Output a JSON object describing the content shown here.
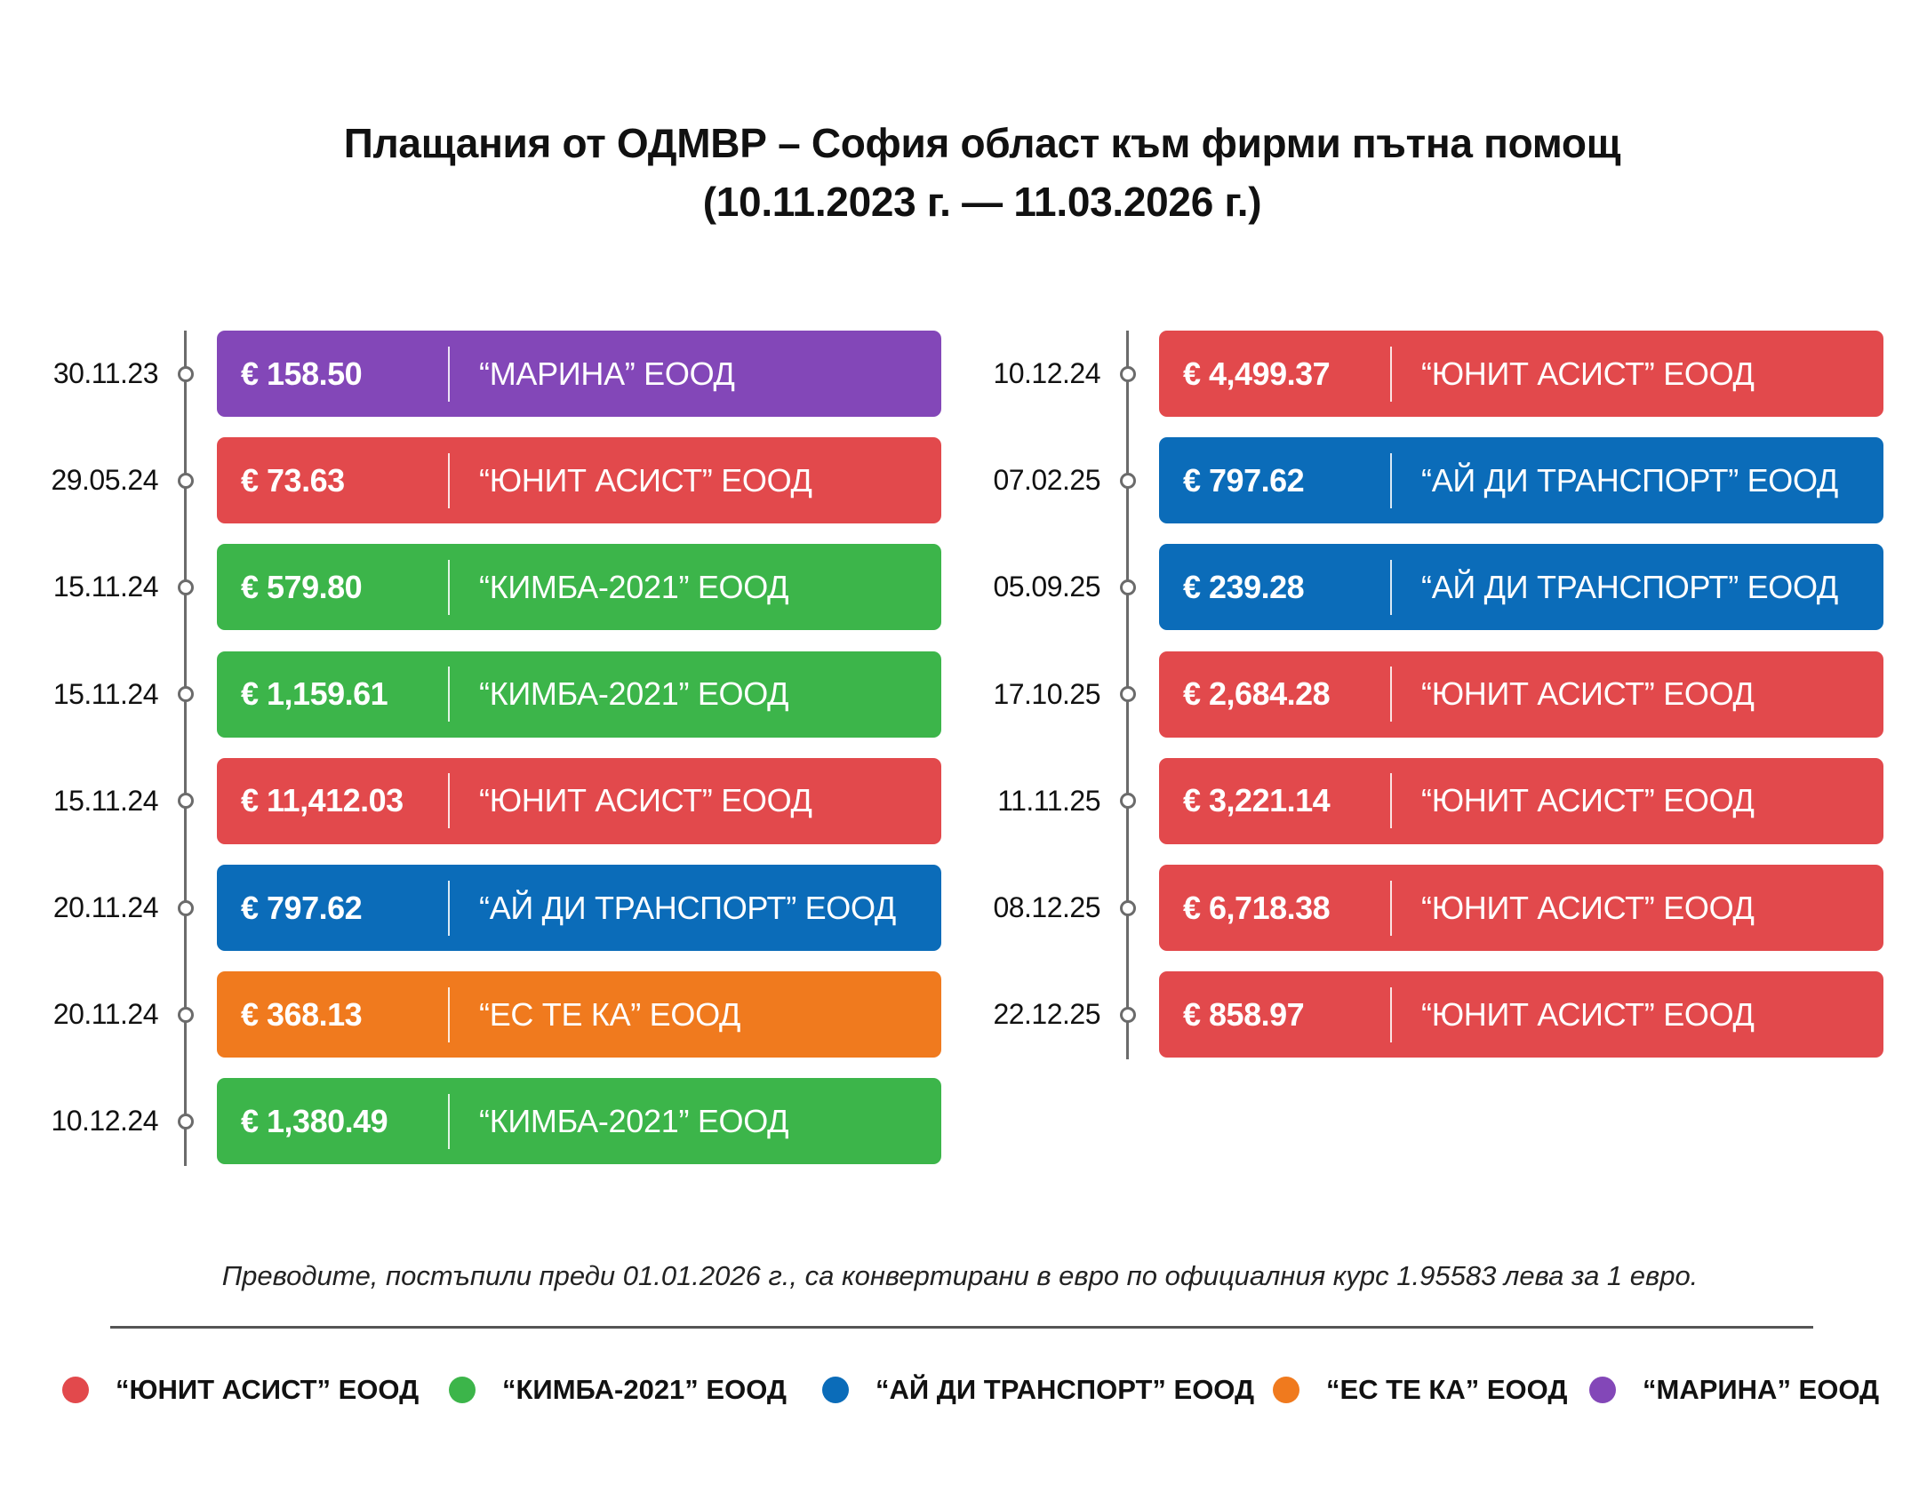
{
  "title": {
    "line1": "Плащания от ОДМВР – София област към фирми пътна помощ",
    "line2": "(10.11.2023 г. — 11.03.2026 г.)"
  },
  "colors": {
    "ЮНИТ АСИСТ": "#e2494c",
    "КИМБА-2021": "#3cb54a",
    "АЙ ДИ ТРАНСПОРТ": "#0b6cb9",
    "ЕС ТЕ КА": "#f07a1e",
    "МАРИНА": "#8347b8"
  },
  "chart_data": {
    "type": "table",
    "columns": [
      [
        {
          "date": "30.11.23",
          "amount": "€ 158.50",
          "value": 158.5,
          "company": "“МАРИНА” ЕООД",
          "company_key": "МАРИНА"
        },
        {
          "date": "29.05.24",
          "amount": "€ 73.63",
          "value": 73.63,
          "company": "“ЮНИТ АСИСТ” ЕООД",
          "company_key": "ЮНИТ АСИСТ"
        },
        {
          "date": "15.11.24",
          "amount": "€ 579.80",
          "value": 579.8,
          "company": "“КИМБА-2021” ЕООД",
          "company_key": "КИМБА-2021"
        },
        {
          "date": "15.11.24",
          "amount": "€ 1,159.61",
          "value": 1159.61,
          "company": "“КИМБА-2021” ЕООД",
          "company_key": "КИМБА-2021"
        },
        {
          "date": "15.11.24",
          "amount": "€ 11,412.03",
          "value": 11412.03,
          "company": "“ЮНИТ АСИСТ” ЕООД",
          "company_key": "ЮНИТ АСИСТ"
        },
        {
          "date": "20.11.24",
          "amount": "€ 797.62",
          "value": 797.62,
          "company": "“АЙ ДИ ТРАНСПОРТ” ЕООД",
          "company_key": "АЙ ДИ ТРАНСПОРТ"
        },
        {
          "date": "20.11.24",
          "amount": "€ 368.13",
          "value": 368.13,
          "company": "“ЕС ТЕ КА” ЕООД",
          "company_key": "ЕС ТЕ КА"
        },
        {
          "date": "10.12.24",
          "amount": "€ 1,380.49",
          "value": 1380.49,
          "company": "“КИМБА-2021” ЕООД",
          "company_key": "КИМБА-2021"
        }
      ],
      [
        {
          "date": "10.12.24",
          "amount": "€ 4,499.37",
          "value": 4499.37,
          "company": "“ЮНИТ АСИСТ” ЕООД",
          "company_key": "ЮНИТ АСИСТ"
        },
        {
          "date": "07.02.25",
          "amount": "€ 797.62",
          "value": 797.62,
          "company": "“АЙ ДИ ТРАНСПОРТ” ЕООД",
          "company_key": "АЙ ДИ ТРАНСПОРТ"
        },
        {
          "date": "05.09.25",
          "amount": "€ 239.28",
          "value": 239.28,
          "company": "“АЙ ДИ ТРАНСПОРТ” ЕООД",
          "company_key": "АЙ ДИ ТРАНСПОРТ"
        },
        {
          "date": "17.10.25",
          "amount": "€ 2,684.28",
          "value": 2684.28,
          "company": "“ЮНИТ АСИСТ” ЕООД",
          "company_key": "ЮНИТ АСИСТ"
        },
        {
          "date": "11.11.25",
          "amount": "€ 3,221.14",
          "value": 3221.14,
          "company": "“ЮНИТ АСИСТ” ЕООД",
          "company_key": "ЮНИТ АСИСТ"
        },
        {
          "date": "08.12.25",
          "amount": "€ 6,718.38",
          "value": 6718.38,
          "company": "“ЮНИТ АСИСТ” ЕООД",
          "company_key": "ЮНИТ АСИСТ"
        },
        {
          "date": "22.12.25",
          "amount": "€ 858.97",
          "value": 858.97,
          "company": "“ЮНИТ АСИСТ” ЕООД",
          "company_key": "ЮНИТ АСИСТ"
        }
      ]
    ]
  },
  "note": "Преводите, постъпили преди 01.01.2026 г., са конвертирани в евро по официалния курс 1.95583 лева за 1 евро.",
  "legend": [
    {
      "label": "“ЮНИТ АСИСТ” ЕООД",
      "color": "#e2494c"
    },
    {
      "label": "“КИМБА-2021” ЕООД",
      "color": "#3cb54a"
    },
    {
      "label": "“АЙ ДИ ТРАНСПОРТ” ЕООД",
      "color": "#0b6cb9"
    },
    {
      "label": "“ЕС ТЕ КА” ЕООД",
      "color": "#f07a1e"
    },
    {
      "label": "“МАРИНА” ЕООД",
      "color": "#8347b8"
    }
  ]
}
